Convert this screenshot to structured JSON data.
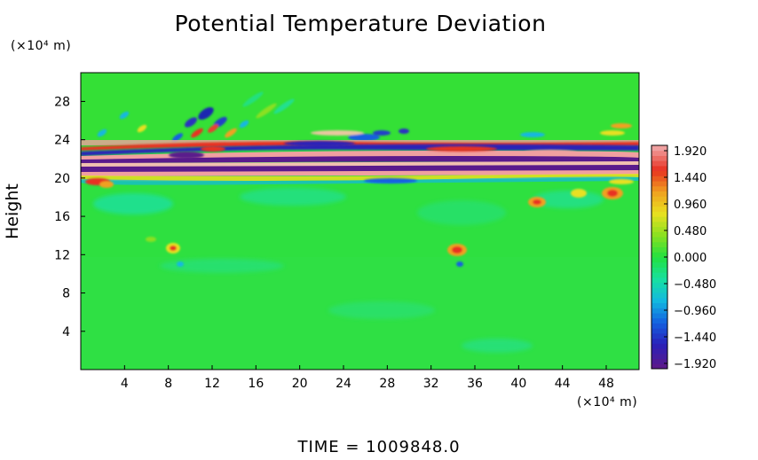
{
  "chart_data": {
    "type": "heatmap",
    "title": "Potential Temperature Deviation",
    "xlabel": "",
    "ylabel": "Height",
    "x_unit": "(×10⁴ m)",
    "y_unit": "(×10⁴ m)",
    "xlim": [
      0,
      51
    ],
    "ylim": [
      0,
      31
    ],
    "x_ticks": [
      4,
      8,
      12,
      16,
      20,
      24,
      28,
      32,
      36,
      40,
      44,
      48
    ],
    "y_ticks": [
      4,
      8,
      12,
      16,
      20,
      24,
      28
    ],
    "colorbar": {
      "min": -1.92,
      "max": 1.92,
      "labels": [
        "1.920",
        "1.440",
        "0.960",
        "0.480",
        "0.000",
        "−0.480",
        "−0.960",
        "−1.440",
        "−1.920"
      ],
      "colors": [
        "#5a1a8c",
        "#2a20b8",
        "#1460e0",
        "#12b8e0",
        "#18e0a0",
        "#22e040",
        "#8ae020",
        "#e8e020",
        "#f0a020",
        "#e83020",
        "#f0a0a0"
      ]
    },
    "footer": "TIME  =  1009848.0"
  }
}
